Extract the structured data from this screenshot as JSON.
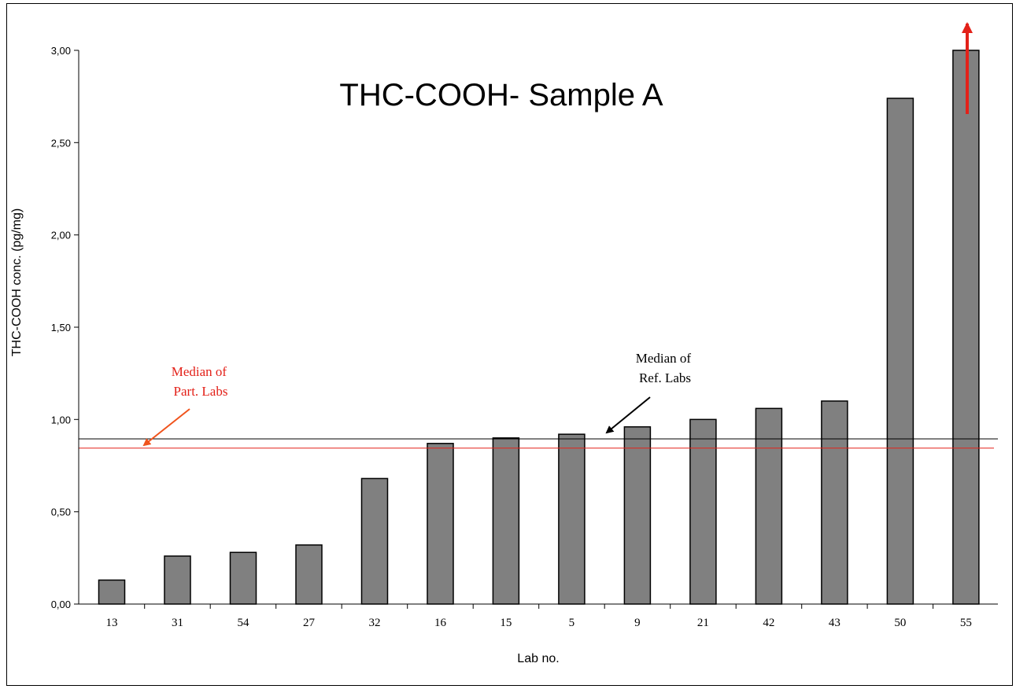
{
  "chart_data": {
    "type": "bar",
    "title": "THC-COOH- Sample A",
    "xlabel": "Lab no.",
    "ylabel": "THC-COOH conc. (pg/mg)",
    "categories": [
      "13",
      "31",
      "54",
      "27",
      "32",
      "16",
      "15",
      "5",
      "9",
      "21",
      "42",
      "43",
      "50",
      "55"
    ],
    "values": [
      0.13,
      0.26,
      0.28,
      0.32,
      0.68,
      0.87,
      0.9,
      0.92,
      0.96,
      1.0,
      1.06,
      1.1,
      2.74,
      3.0
    ],
    "ylim": [
      0,
      3.0
    ],
    "yticks": [
      "0,00",
      "0,50",
      "1,00",
      "1,50",
      "2,00",
      "2,50",
      "3,00"
    ],
    "ytick_values": [
      0,
      0.5,
      1.0,
      1.5,
      2.0,
      2.5,
      3.0
    ],
    "bar_color": "#808080",
    "grid": false,
    "reference_lines": [
      {
        "label_lines": [
          "Median of",
          "Ref. Labs"
        ],
        "value": 0.895,
        "color": "#000000"
      },
      {
        "label_lines": [
          "Median of",
          "Part. Labs"
        ],
        "value": 0.845,
        "color": "#e32119"
      }
    ],
    "overflow_marker": {
      "category": "55",
      "color": "#e32119",
      "note": "arrow indicates value exceeds axis maximum"
    }
  }
}
